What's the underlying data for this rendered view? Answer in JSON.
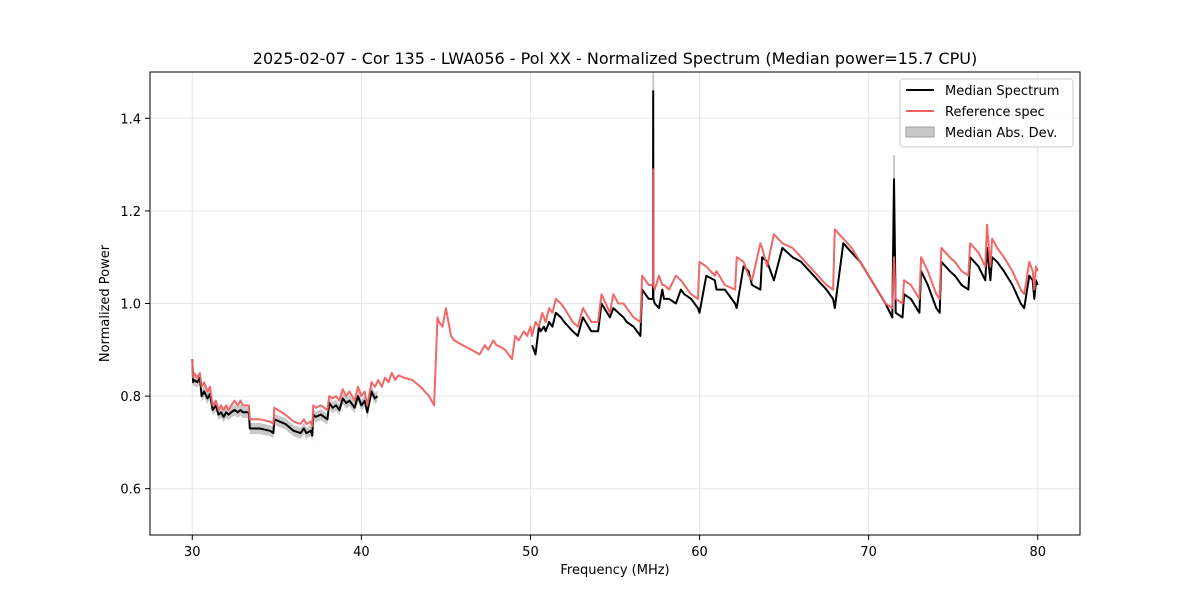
{
  "chart_data": {
    "type": "line",
    "title": "2025-02-07 - Cor 135 - LWA056 - Pol XX - Normalized Spectrum (Median power=15.7 CPU)",
    "xlabel": "Frequency (MHz)",
    "ylabel": "Normalized Power",
    "xlim": [
      27.5,
      82.5
    ],
    "ylim": [
      0.5,
      1.5
    ],
    "xticks": [
      30,
      40,
      50,
      60,
      70,
      80
    ],
    "xtick_labels": [
      "30",
      "40",
      "50",
      "60",
      "70",
      "80"
    ],
    "yticks": [
      0.6,
      0.8,
      1.0,
      1.2,
      1.4
    ],
    "ytick_labels": [
      "0.6",
      "0.8",
      "1.0",
      "1.2",
      "1.4"
    ],
    "grid": true,
    "legend_position": "top-right",
    "legend": [
      {
        "label": "Median Spectrum",
        "kind": "line",
        "color": "#000000"
      },
      {
        "label": "Reference spec",
        "kind": "line",
        "color": "#f06060"
      },
      {
        "label": "Median Abs. Dev.",
        "kind": "band",
        "color": "#c8c8c8"
      }
    ],
    "series": [
      {
        "name": "Reference spec",
        "color": "#f06060",
        "x": [
          30.0,
          30.05,
          30.1,
          30.3,
          30.45,
          30.55,
          30.7,
          30.9,
          31.05,
          31.2,
          31.4,
          31.55,
          31.7,
          31.85,
          32.0,
          32.15,
          32.3,
          32.5,
          32.7,
          32.85,
          33.0,
          33.2,
          33.35,
          33.4,
          34.0,
          34.6,
          34.8,
          34.85,
          35.5,
          36.0,
          36.4,
          36.6,
          36.75,
          37.0,
          37.1,
          37.15,
          37.3,
          37.6,
          38.0,
          38.1,
          38.3,
          38.5,
          38.7,
          38.9,
          39.1,
          39.3,
          39.6,
          39.8,
          40.0,
          40.2,
          40.35,
          40.6,
          40.8,
          41.0,
          41.2,
          41.4,
          41.6,
          41.8,
          42.0,
          42.2,
          42.5,
          43.0,
          43.5,
          44.0,
          44.3,
          44.5,
          44.6,
          44.8,
          45.0,
          45.3,
          45.5,
          46.0,
          46.5,
          47.0,
          47.3,
          47.5,
          47.8,
          48.0,
          48.3,
          48.5,
          48.7,
          48.9,
          49.1,
          49.3,
          49.6,
          49.8,
          50.0,
          50.1,
          50.3,
          50.5,
          50.7,
          50.9,
          51.1,
          51.3,
          51.5,
          51.8,
          52.0,
          52.5,
          52.8,
          53.1,
          53.6,
          54.0,
          54.2,
          54.7,
          54.9,
          55.2,
          55.5,
          55.7,
          56.1,
          56.5,
          56.6,
          57.0,
          57.25,
          57.26,
          57.27,
          57.35,
          57.6,
          57.8,
          57.9,
          58.2,
          58.6,
          58.9,
          59.1,
          59.5,
          59.9,
          60.0,
          60.4,
          60.9,
          61.0,
          61.5,
          62.1,
          62.2,
          62.6,
          62.9,
          63.1,
          63.6,
          63.7,
          64.0,
          64.4,
          64.9,
          65.5,
          66.0,
          66.5,
          67.0,
          67.5,
          67.9,
          68.0,
          68.5,
          69.0,
          69.5,
          70.0,
          70.5,
          71.0,
          71.4,
          71.5,
          71.6,
          72.0,
          72.1,
          72.5,
          73.0,
          73.1,
          73.5,
          74.0,
          74.2,
          74.3,
          74.8,
          75.1,
          75.5,
          75.9,
          76.0,
          76.5,
          76.9,
          77.0,
          77.2,
          77.3,
          77.6,
          78.0,
          78.5,
          79.0,
          79.2,
          79.5,
          79.7,
          79.8,
          79.9,
          80.0
        ],
        "values": [
          0.88,
          0.84,
          0.85,
          0.84,
          0.85,
          0.82,
          0.83,
          0.81,
          0.82,
          0.78,
          0.79,
          0.77,
          0.78,
          0.77,
          0.78,
          0.77,
          0.78,
          0.79,
          0.78,
          0.79,
          0.78,
          0.78,
          0.78,
          0.75,
          0.75,
          0.745,
          0.74,
          0.775,
          0.76,
          0.745,
          0.74,
          0.75,
          0.74,
          0.745,
          0.735,
          0.78,
          0.775,
          0.78,
          0.77,
          0.8,
          0.795,
          0.8,
          0.79,
          0.815,
          0.8,
          0.81,
          0.79,
          0.82,
          0.8,
          0.81,
          0.78,
          0.83,
          0.82,
          0.835,
          0.82,
          0.84,
          0.83,
          0.85,
          0.835,
          0.845,
          0.84,
          0.835,
          0.82,
          0.8,
          0.78,
          0.97,
          0.96,
          0.95,
          0.99,
          0.93,
          0.92,
          0.91,
          0.9,
          0.89,
          0.91,
          0.9,
          0.92,
          0.91,
          0.905,
          0.9,
          0.89,
          0.88,
          0.93,
          0.92,
          0.94,
          0.93,
          0.95,
          0.93,
          0.96,
          0.95,
          0.98,
          0.96,
          0.99,
          0.98,
          1.01,
          1.0,
          0.99,
          0.96,
          0.95,
          0.99,
          0.96,
          0.96,
          1.02,
          0.98,
          1.02,
          1.0,
          1.0,
          0.99,
          0.97,
          0.96,
          1.06,
          1.04,
          1.04,
          1.29,
          1.04,
          1.03,
          1.06,
          1.04,
          1.04,
          1.03,
          1.06,
          1.05,
          1.04,
          1.02,
          1.01,
          1.09,
          1.08,
          1.06,
          1.07,
          1.04,
          1.03,
          1.1,
          1.09,
          1.06,
          1.05,
          1.13,
          1.12,
          1.08,
          1.15,
          1.13,
          1.12,
          1.1,
          1.08,
          1.06,
          1.04,
          1.03,
          1.16,
          1.14,
          1.12,
          1.09,
          1.06,
          1.03,
          1.0,
          0.99,
          1.1,
          1.01,
          1.0,
          1.05,
          1.04,
          1.01,
          1.1,
          1.07,
          1.02,
          1.01,
          1.12,
          1.1,
          1.09,
          1.07,
          1.06,
          1.13,
          1.11,
          1.08,
          1.17,
          1.08,
          1.14,
          1.12,
          1.1,
          1.07,
          1.03,
          1.02,
          1.09,
          1.07,
          1.03,
          1.08,
          1.07
        ]
      },
      {
        "name": "Median Spectrum",
        "color": "#000000",
        "segments": [
          {
            "x": [
              30.0,
              30.05,
              30.1,
              30.3,
              30.45,
              30.55,
              30.7,
              30.9,
              31.05,
              31.2,
              31.4,
              31.55,
              31.7,
              31.85,
              32.0,
              32.15,
              32.3,
              32.5,
              32.7,
              32.85,
              33.0,
              33.2,
              33.35,
              33.4,
              34.0,
              34.6,
              34.8,
              34.85,
              35.5,
              36.0,
              36.4,
              36.6,
              36.75,
              37.0,
              37.1,
              37.15,
              37.3,
              37.6,
              38.0,
              38.1,
              38.3,
              38.5,
              38.7,
              38.9,
              39.1,
              39.3,
              39.6,
              39.8,
              40.0,
              40.2,
              40.35,
              40.6,
              40.8,
              40.95
            ],
            "values": [
              0.88,
              0.83,
              0.835,
              0.83,
              0.84,
              0.8,
              0.81,
              0.795,
              0.805,
              0.77,
              0.78,
              0.76,
              0.765,
              0.755,
              0.765,
              0.76,
              0.765,
              0.77,
              0.765,
              0.77,
              0.765,
              0.765,
              0.765,
              0.73,
              0.73,
              0.725,
              0.72,
              0.75,
              0.74,
              0.725,
              0.72,
              0.73,
              0.72,
              0.725,
              0.715,
              0.76,
              0.755,
              0.76,
              0.75,
              0.785,
              0.775,
              0.78,
              0.77,
              0.795,
              0.785,
              0.79,
              0.775,
              0.8,
              0.78,
              0.79,
              0.765,
              0.81,
              0.795,
              0.8
            ]
          },
          {
            "x": [
              50.1,
              50.3,
              50.5,
              50.6,
              50.8,
              50.9,
              51.1,
              51.3,
              51.5,
              51.8,
              52.0,
              52.5,
              52.8,
              53.1,
              53.6,
              54.0,
              54.2,
              54.7,
              54.9,
              55.2,
              55.5,
              55.7,
              56.1,
              56.5,
              56.6,
              57.0,
              57.25,
              57.26,
              57.27,
              57.35,
              57.6,
              57.8,
              57.9,
              58.2,
              58.6,
              58.9,
              59.1,
              59.5,
              59.9,
              60.0,
              60.4,
              60.9,
              61.0,
              61.5,
              62.1,
              62.2,
              62.6,
              62.9,
              63.1,
              63.6,
              63.7,
              64.0,
              64.4,
              64.9,
              65.5,
              66.0,
              66.5,
              67.0,
              67.5,
              67.9,
              68.0,
              68.5,
              69.0,
              69.5,
              70.0,
              70.5,
              71.0,
              71.4,
              71.5,
              71.6,
              72.0,
              72.1,
              72.5,
              73.0,
              73.1,
              73.5,
              74.0,
              74.2,
              74.3,
              74.8,
              75.1,
              75.5,
              75.9,
              76.0,
              76.5,
              76.9,
              77.0,
              77.2,
              77.3,
              77.6,
              78.0,
              78.5,
              79.0,
              79.2,
              79.5,
              79.7,
              79.8,
              79.9,
              80.0
            ],
            "values": [
              0.91,
              0.89,
              0.95,
              0.94,
              0.95,
              0.94,
              0.96,
              0.95,
              0.98,
              0.97,
              0.96,
              0.94,
              0.93,
              0.97,
              0.94,
              0.94,
              1.0,
              0.97,
              0.99,
              0.98,
              0.97,
              0.96,
              0.95,
              0.93,
              1.03,
              1.01,
              1.01,
              1.46,
              1.01,
              1.0,
              0.99,
              1.03,
              1.01,
              1.01,
              1.0,
              1.03,
              1.02,
              1.01,
              0.99,
              0.98,
              1.06,
              1.05,
              1.03,
              1.03,
              1.0,
              0.99,
              1.08,
              1.07,
              1.04,
              1.03,
              1.1,
              1.09,
              1.05,
              1.12,
              1.1,
              1.09,
              1.07,
              1.05,
              1.03,
              1.01,
              0.99,
              1.13,
              1.11,
              1.09,
              1.06,
              1.03,
              1.0,
              0.97,
              1.27,
              0.98,
              0.97,
              1.02,
              1.01,
              0.98,
              1.07,
              1.04,
              0.99,
              0.98,
              1.09,
              1.07,
              1.06,
              1.04,
              1.03,
              1.1,
              1.08,
              1.05,
              1.12,
              1.05,
              1.1,
              1.09,
              1.07,
              1.04,
              1.0,
              0.99,
              1.06,
              1.05,
              1.01,
              1.05,
              1.04
            ]
          }
        ]
      }
    ],
    "mad_band": {
      "name": "Median Abs. Dev.",
      "color": "#c8c8c8",
      "segment": 0,
      "halfwidth": 0.012
    }
  }
}
